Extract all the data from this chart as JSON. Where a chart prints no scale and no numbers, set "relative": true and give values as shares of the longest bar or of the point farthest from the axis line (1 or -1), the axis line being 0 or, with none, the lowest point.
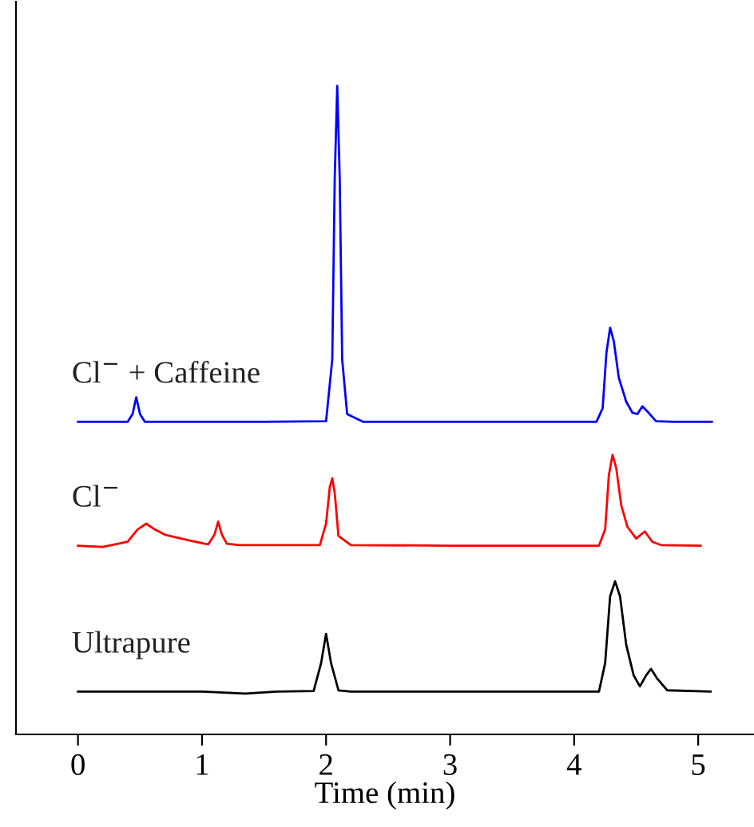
{
  "chart_data": {
    "type": "line",
    "xlabel": "Time (min)",
    "relative": true,
    "xlim": [
      -0.5,
      5.45
    ],
    "xticks": [
      0,
      1,
      2,
      3,
      4,
      5
    ],
    "grid": false,
    "legend": false,
    "marker": "none",
    "line_style": "solid",
    "series": [
      {
        "name": "Cl$^{−}$ + Caffeine",
        "color": "#0000ff",
        "x": [
          0,
          0.4,
          0.44,
          0.47,
          0.5,
          0.54,
          0.6,
          1.5,
          2.0,
          2.05,
          2.07,
          2.09,
          2.11,
          2.13,
          2.17,
          2.3,
          3.0,
          4.18,
          4.23,
          4.26,
          4.29,
          4.32,
          4.36,
          4.42,
          4.47,
          4.51,
          4.55,
          4.6,
          4.66,
          4.8,
          5.11
        ],
        "values": [
          0.482,
          0.482,
          0.494,
          0.52,
          0.494,
          0.482,
          0.482,
          0.482,
          0.483,
          0.578,
          0.859,
          1.0,
          0.859,
          0.578,
          0.494,
          0.482,
          0.482,
          0.482,
          0.503,
          0.588,
          0.627,
          0.606,
          0.55,
          0.513,
          0.496,
          0.494,
          0.506,
          0.496,
          0.483,
          0.482,
          0.482
        ]
      },
      {
        "name": "Cl$^{−}$",
        "color": "#ff0000",
        "x": [
          0,
          0.2,
          0.4,
          0.48,
          0.55,
          0.62,
          0.7,
          0.9,
          1.05,
          1.1,
          1.13,
          1.16,
          1.2,
          1.3,
          1.95,
          2.0,
          2.03,
          2.05,
          2.07,
          2.1,
          2.2,
          3.0,
          4.2,
          4.25,
          4.28,
          4.31,
          4.34,
          4.38,
          4.43,
          4.5,
          4.57,
          4.63,
          4.7,
          5.02
        ],
        "values": [
          0.291,
          0.289,
          0.297,
          0.316,
          0.325,
          0.316,
          0.308,
          0.299,
          0.293,
          0.308,
          0.328,
          0.308,
          0.294,
          0.292,
          0.292,
          0.325,
          0.381,
          0.395,
          0.372,
          0.306,
          0.292,
          0.291,
          0.291,
          0.316,
          0.4,
          0.431,
          0.41,
          0.353,
          0.32,
          0.302,
          0.313,
          0.297,
          0.292,
          0.291
        ]
      },
      {
        "name": "Ultrapure",
        "color": "#000000",
        "x": [
          0,
          1.0,
          1.35,
          1.6,
          1.9,
          1.96,
          2.0,
          2.04,
          2.1,
          2.2,
          3.0,
          4.2,
          4.25,
          4.29,
          4.33,
          4.37,
          4.42,
          4.48,
          4.53,
          4.58,
          4.62,
          4.67,
          4.75,
          5.1
        ],
        "values": [
          0.066,
          0.066,
          0.063,
          0.066,
          0.067,
          0.11,
          0.155,
          0.11,
          0.068,
          0.066,
          0.066,
          0.066,
          0.11,
          0.213,
          0.236,
          0.213,
          0.138,
          0.091,
          0.074,
          0.091,
          0.101,
          0.086,
          0.068,
          0.066
        ]
      }
    ]
  }
}
